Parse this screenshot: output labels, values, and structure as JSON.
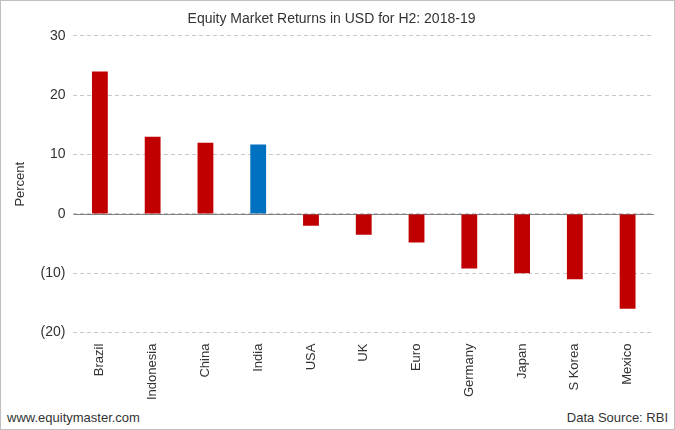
{
  "chart_data": {
    "type": "bar",
    "title": "Equity Market Returns in USD for H2: 2018-19",
    "y_label": "Percent",
    "categories": [
      "Brazil",
      "Indonesia",
      "China",
      "India",
      "USA",
      "UK",
      "Euro",
      "Germany",
      "Japan",
      "S Korea",
      "Mexico"
    ],
    "values": [
      24,
      13,
      12,
      11.7,
      -2,
      -3.5,
      -4.8,
      -9.2,
      -10,
      -11,
      -16
    ],
    "colors": [
      "#c00000",
      "#c00000",
      "#c00000",
      "#0070c0",
      "#c00000",
      "#c00000",
      "#c00000",
      "#c00000",
      "#c00000",
      "#c00000",
      "#c00000"
    ],
    "ylim": [
      -20,
      30
    ],
    "yticks": [
      {
        "value": -20,
        "label": "(20)"
      },
      {
        "value": -10,
        "label": "(10)"
      },
      0,
      10,
      20,
      30
    ],
    "grid": true,
    "annotations": [
      "www.equitymaster.com",
      "Data Source: RBI"
    ]
  }
}
